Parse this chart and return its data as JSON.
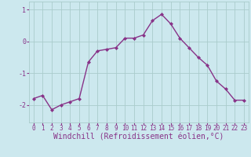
{
  "x": [
    0,
    1,
    2,
    3,
    4,
    5,
    6,
    7,
    8,
    9,
    10,
    11,
    12,
    13,
    14,
    15,
    16,
    17,
    18,
    19,
    20,
    21,
    22,
    23
  ],
  "y": [
    -1.8,
    -1.7,
    -2.15,
    -2.0,
    -1.9,
    -1.8,
    -0.65,
    -0.3,
    -0.25,
    -0.2,
    0.1,
    0.1,
    0.2,
    0.65,
    0.85,
    0.55,
    0.1,
    -0.2,
    -0.5,
    -0.75,
    -1.25,
    -1.5,
    -1.85,
    -1.85
  ],
  "line_color": "#883388",
  "marker": "D",
  "marker_size": 2.0,
  "line_width": 1.0,
  "bg_color": "#cce8ee",
  "grid_color": "#aacccc",
  "xlabel": "Windchill (Refroidissement éolien,°C)",
  "xlabel_color": "#883388",
  "xlabel_fontsize": 7.0,
  "tick_color": "#883388",
  "tick_fontsize": 5.5,
  "ytick_labels": [
    "-2",
    "-1",
    "0",
    "1"
  ],
  "ytick_values": [
    -2,
    -1,
    0,
    1
  ],
  "ylim": [
    -2.55,
    1.25
  ],
  "xlim": [
    -0.5,
    23.5
  ]
}
